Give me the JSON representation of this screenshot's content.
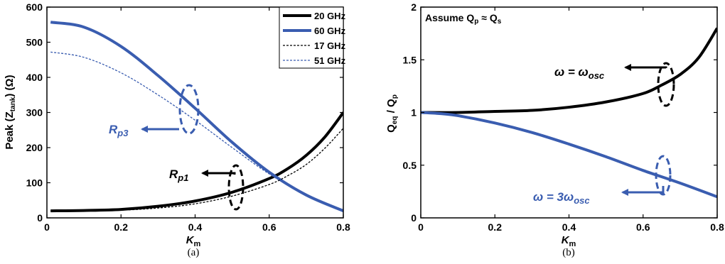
{
  "chart_data": [
    {
      "type": "line",
      "caption": "(a)",
      "xlabel": {
        "main": "K",
        "sub": "m"
      },
      "ylabel": {
        "pre": "Peak (",
        "var": "Z",
        "sub": "tank",
        "post": ") (Ω)"
      },
      "xlim": [
        0,
        0.8
      ],
      "ylim": [
        0,
        600
      ],
      "xticks": [
        "0",
        "0.2",
        "0.4",
        "0.6",
        "0.8"
      ],
      "yticks": [
        "0",
        "100",
        "200",
        "300",
        "400",
        "500",
        "600"
      ],
      "legend": {
        "placement": "top-right"
      },
      "series": [
        {
          "name": "20 GHz",
          "color": "#000000",
          "style": "solid",
          "x": [
            0.01,
            0.1,
            0.2,
            0.3,
            0.4,
            0.5,
            0.6,
            0.65,
            0.7,
            0.75,
            0.8
          ],
          "y": [
            20,
            21,
            24,
            33,
            48,
            73,
            112,
            140,
            178,
            230,
            300
          ]
        },
        {
          "name": "60 GHz",
          "color": "#3a5db0",
          "style": "solid",
          "x": [
            0.01,
            0.1,
            0.2,
            0.3,
            0.4,
            0.5,
            0.6,
            0.7,
            0.8
          ],
          "y": [
            557,
            543,
            488,
            405,
            312,
            215,
            130,
            65,
            20
          ]
        },
        {
          "name": "17 GHz",
          "color": "#000000",
          "style": "dashed",
          "x": [
            0.01,
            0.1,
            0.2,
            0.3,
            0.4,
            0.5,
            0.6,
            0.65,
            0.7,
            0.75,
            0.8
          ],
          "y": [
            20,
            20,
            22,
            28,
            40,
            62,
            95,
            120,
            152,
            198,
            255
          ]
        },
        {
          "name": "51 GHz",
          "color": "#3a5db0",
          "style": "dashed",
          "x": [
            0.01,
            0.1,
            0.2,
            0.3,
            0.4,
            0.5,
            0.6,
            0.7,
            0.8
          ],
          "y": [
            472,
            457,
            413,
            350,
            278,
            200,
            125,
            65,
            20
          ]
        }
      ],
      "annotations": [
        {
          "name": "rp3",
          "base": "R",
          "sub": "p3",
          "color": "#3a5db0"
        },
        {
          "name": "rp1",
          "base": "R",
          "sub": "p1",
          "color": "#000000"
        }
      ]
    },
    {
      "type": "line",
      "caption": "(b)",
      "xlabel": {
        "main": "K",
        "sub": "m"
      },
      "ylabel": {
        "main": "Q",
        "sub": "eq",
        "post": " / Q",
        "sub2": "p"
      },
      "xlim": [
        0,
        0.8
      ],
      "ylim": [
        0,
        2
      ],
      "xticks": [
        "0",
        "0.2",
        "0.4",
        "0.6",
        "0.8"
      ],
      "yticks": [
        "0",
        "0.5",
        "1",
        "1.5",
        "2"
      ],
      "note": {
        "text": "Assume Q",
        "sub": "p",
        "mid": " ≈ Q",
        "sub2": "s"
      },
      "series": [
        {
          "label": "ω = ω_osc",
          "color": "#000000",
          "style": "solid",
          "x": [
            0,
            0.1,
            0.2,
            0.3,
            0.4,
            0.5,
            0.6,
            0.65,
            0.7,
            0.75,
            0.8
          ],
          "y": [
            1.0,
            1.0,
            1.01,
            1.02,
            1.05,
            1.1,
            1.18,
            1.26,
            1.36,
            1.52,
            1.8
          ]
        },
        {
          "label": "ω = 3ω_osc",
          "color": "#3a5db0",
          "style": "solid",
          "x": [
            0,
            0.05,
            0.1,
            0.2,
            0.3,
            0.4,
            0.5,
            0.6,
            0.7,
            0.8
          ],
          "y": [
            1.0,
            0.99,
            0.97,
            0.9,
            0.81,
            0.7,
            0.58,
            0.45,
            0.33,
            0.2
          ]
        }
      ],
      "annotations": [
        {
          "name": "omega-osc",
          "pre": "ω = ω",
          "sub": "osc",
          "color": "#000000"
        },
        {
          "name": "omega-3osc",
          "pre": "ω = 3ω",
          "sub": "osc",
          "color": "#3a5db0"
        }
      ]
    }
  ]
}
